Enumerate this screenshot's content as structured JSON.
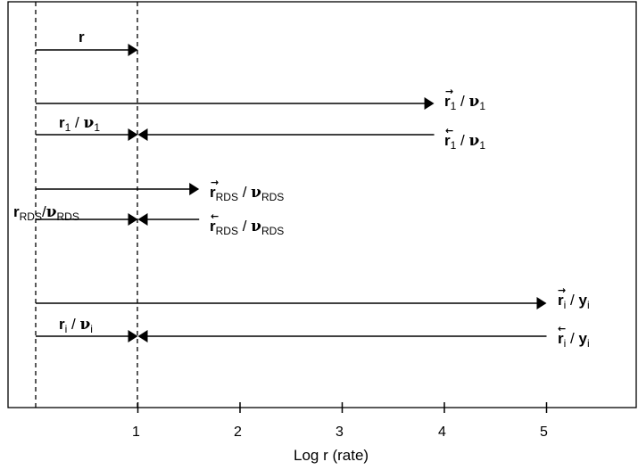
{
  "axis": {
    "xlabel": "Log r (rate)",
    "ticks": [
      "1",
      "2",
      "3",
      "4",
      "5"
    ]
  },
  "labels": {
    "r": "r",
    "fwd1_main": "r",
    "fwd1_sub": "1",
    "fwd1_nu": "ν",
    "fwd1_nusub": "1",
    "left1_main": "r",
    "left1_sub": "1",
    "left1_nu": "ν",
    "left1_nusub": "1",
    "rev1_main": "r",
    "rev1_sub": "1",
    "rev1_nu": "ν",
    "rev1_nusub": "1",
    "fwdRDS_main": "r",
    "fwdRDS_sub": "RDS",
    "fwdRDS_nu": "ν",
    "fwdRDS_nusub": "RDS",
    "leftRDS_main": "r",
    "leftRDS_sub": "RDS",
    "leftRDS_nu": "ν",
    "leftRDS_nusub": "RDS",
    "revRDS_main": "r",
    "revRDS_sub": "RDS",
    "revRDS_nu": "ν",
    "revRDS_nusub": "RDS",
    "fwdi_main": "r",
    "fwdi_sub": "i",
    "fwdi_y": "y",
    "fwdi_ysub": "i",
    "lefti_main": "r",
    "lefti_sub": "i",
    "lefti_nu": "ν",
    "lefti_nusub": "i",
    "revi_main": "r",
    "revi_sub": "i",
    "revi_y": "y",
    "revi_ysub": "i",
    "slash": "/"
  },
  "arrows": {
    "net": {
      "from": 0,
      "to": 1
    },
    "step1_forward": {
      "from": 0,
      "to": 3.9
    },
    "step1_net": {
      "from": 0,
      "to": 1
    },
    "step1_reverse": {
      "from": 3.9,
      "to": 1
    },
    "rds_forward": {
      "from": 0,
      "to": 1.6
    },
    "rds_net": {
      "from": 0,
      "to": 1
    },
    "rds_reverse": {
      "from": 1.6,
      "to": 1
    },
    "stepi_forward": {
      "from": 0,
      "to": 5
    },
    "stepi_net": {
      "from": 0,
      "to": 1
    },
    "stepi_reverse": {
      "from": 5,
      "to": 1
    }
  }
}
